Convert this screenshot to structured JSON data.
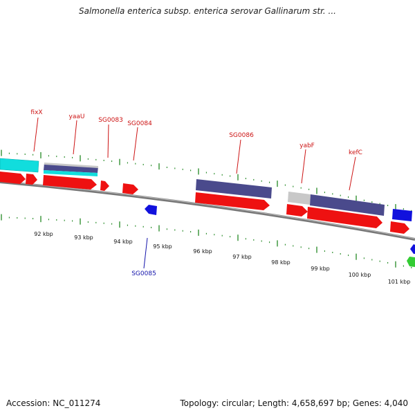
{
  "title": "Salmonella enterica subsp. enterica serovar Gallinarum str. ...",
  "accession": "Accession: NC_011274",
  "summary": "Topology: circular; Length: 4,658,697 bp; Genes: 4,040",
  "colors": {
    "forward_cds": "#ee1111",
    "reverse_cds": "#1111dd",
    "feature_cyan": "#11dddd",
    "feature_purple": "#4a4a8c",
    "feature_grey": "#c8c8c8",
    "feature_green": "#33cc33",
    "backbone": "#888888",
    "ticks": "#228822",
    "forward_label": "#cc1111",
    "reverse_label": "#1111aa"
  },
  "axis": {
    "tick_labels": [
      "92 kbp",
      "93 kbp",
      "94 kbp",
      "95 kbp",
      "96 kbp",
      "97 kbp",
      "98 kbp",
      "99 kbp",
      "100 kbp",
      "101 kbp"
    ]
  },
  "gene_labels": {
    "fixX": "fixX",
    "yaaU": "yaaU",
    "SG0083": "SG0083",
    "SG0084": "SG0084",
    "SG0086": "SG0086",
    "yabF": "yabF",
    "kefC": "kefC",
    "SG0085": "SG0085"
  }
}
